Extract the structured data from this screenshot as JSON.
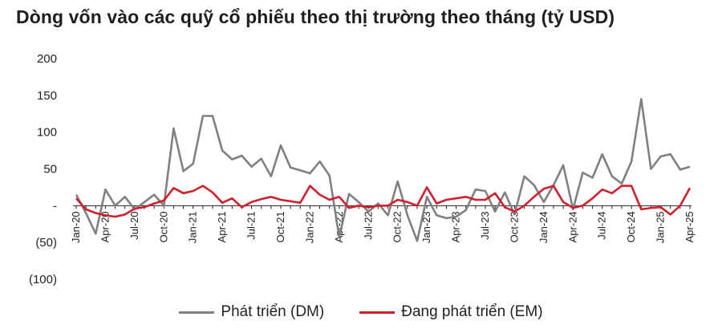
{
  "title": "Dòng vốn vào các quỹ cổ phiếu theo thị trường theo tháng (tỷ USD)",
  "chart_data": {
    "type": "line",
    "title": "Dòng vốn vào các quỹ cổ phiếu theo thị trường theo tháng (tỷ USD)",
    "ylim": [
      -100,
      200
    ],
    "yticks": [
      200,
      150,
      100,
      50,
      0,
      -50,
      -100
    ],
    "ytick_labels": [
      "200",
      "150",
      "100",
      "50",
      "-",
      "(50)",
      "(100)"
    ],
    "x": [
      "Jan-20",
      "Feb-20",
      "Mar-20",
      "Apr-20",
      "May-20",
      "Jun-20",
      "Jul-20",
      "Aug-20",
      "Sep-20",
      "Oct-20",
      "Nov-20",
      "Dec-20",
      "Jan-21",
      "Feb-21",
      "Mar-21",
      "Apr-21",
      "May-21",
      "Jun-21",
      "Jul-21",
      "Aug-21",
      "Sep-21",
      "Oct-21",
      "Nov-21",
      "Dec-21",
      "Jan-22",
      "Feb-22",
      "Mar-22",
      "Apr-22",
      "May-22",
      "Jun-22",
      "Jul-22",
      "Aug-22",
      "Sep-22",
      "Oct-22",
      "Nov-22",
      "Dec-22",
      "Jan-23",
      "Feb-23",
      "Mar-23",
      "Apr-23",
      "May-23",
      "Jun-23",
      "Jul-23",
      "Aug-23",
      "Sep-23",
      "Oct-23",
      "Nov-23",
      "Dec-23",
      "Jan-24",
      "Feb-24",
      "Mar-24",
      "Apr-24",
      "May-24",
      "Jun-24",
      "Jul-24",
      "Aug-24",
      "Sep-24",
      "Oct-24",
      "Nov-24",
      "Dec-24",
      "Jan-25",
      "Feb-25",
      "Mar-25",
      "Apr-25"
    ],
    "xtick_labels": [
      "Jan-20",
      "Apr-20",
      "Jul-20",
      "Oct-20",
      "Jan-21",
      "Apr-21",
      "Jul-21",
      "Oct-21",
      "Jan-22",
      "Apr-22",
      "Jul-22",
      "Oct-22",
      "Jan-23",
      "Apr-23",
      "Jul-23",
      "Oct-23",
      "Jan-24",
      "Apr-24",
      "Jul-24",
      "Oct-24",
      "Jan-25",
      "Apr-25"
    ],
    "legend_position": "bottom",
    "grid": false,
    "series": [
      {
        "name": "Phát triển (DM)",
        "color": "#808080",
        "values": [
          15,
          -10,
          -38,
          22,
          0,
          12,
          -5,
          5,
          15,
          0,
          105,
          47,
          57,
          122,
          122,
          75,
          63,
          68,
          53,
          64,
          40,
          82,
          52,
          48,
          44,
          60,
          41,
          -43,
          16,
          5,
          -8,
          3,
          -13,
          33,
          -13,
          -48,
          12,
          -13,
          -17,
          -15,
          -6,
          22,
          20,
          -8,
          18,
          -12,
          40,
          28,
          5,
          28,
          55,
          -5,
          45,
          38,
          70,
          40,
          30,
          60,
          145,
          50,
          67,
          70,
          49,
          53
        ]
      },
      {
        "name": "Đang phát triển (EM)",
        "color": "#d0202e",
        "values": [
          10,
          -5,
          -10,
          -13,
          -15,
          -12,
          -4,
          -2,
          3,
          7,
          24,
          17,
          20,
          27,
          18,
          4,
          10,
          -2,
          5,
          9,
          12,
          8,
          6,
          4,
          27,
          15,
          8,
          12,
          -3,
          0,
          -2,
          0,
          0,
          8,
          5,
          0,
          25,
          3,
          8,
          10,
          12,
          8,
          8,
          17,
          -2,
          -8,
          0,
          12,
          23,
          27,
          5,
          -3,
          0,
          10,
          22,
          17,
          27,
          27,
          -5,
          -3,
          -2,
          -12,
          0,
          24
        ]
      }
    ]
  }
}
